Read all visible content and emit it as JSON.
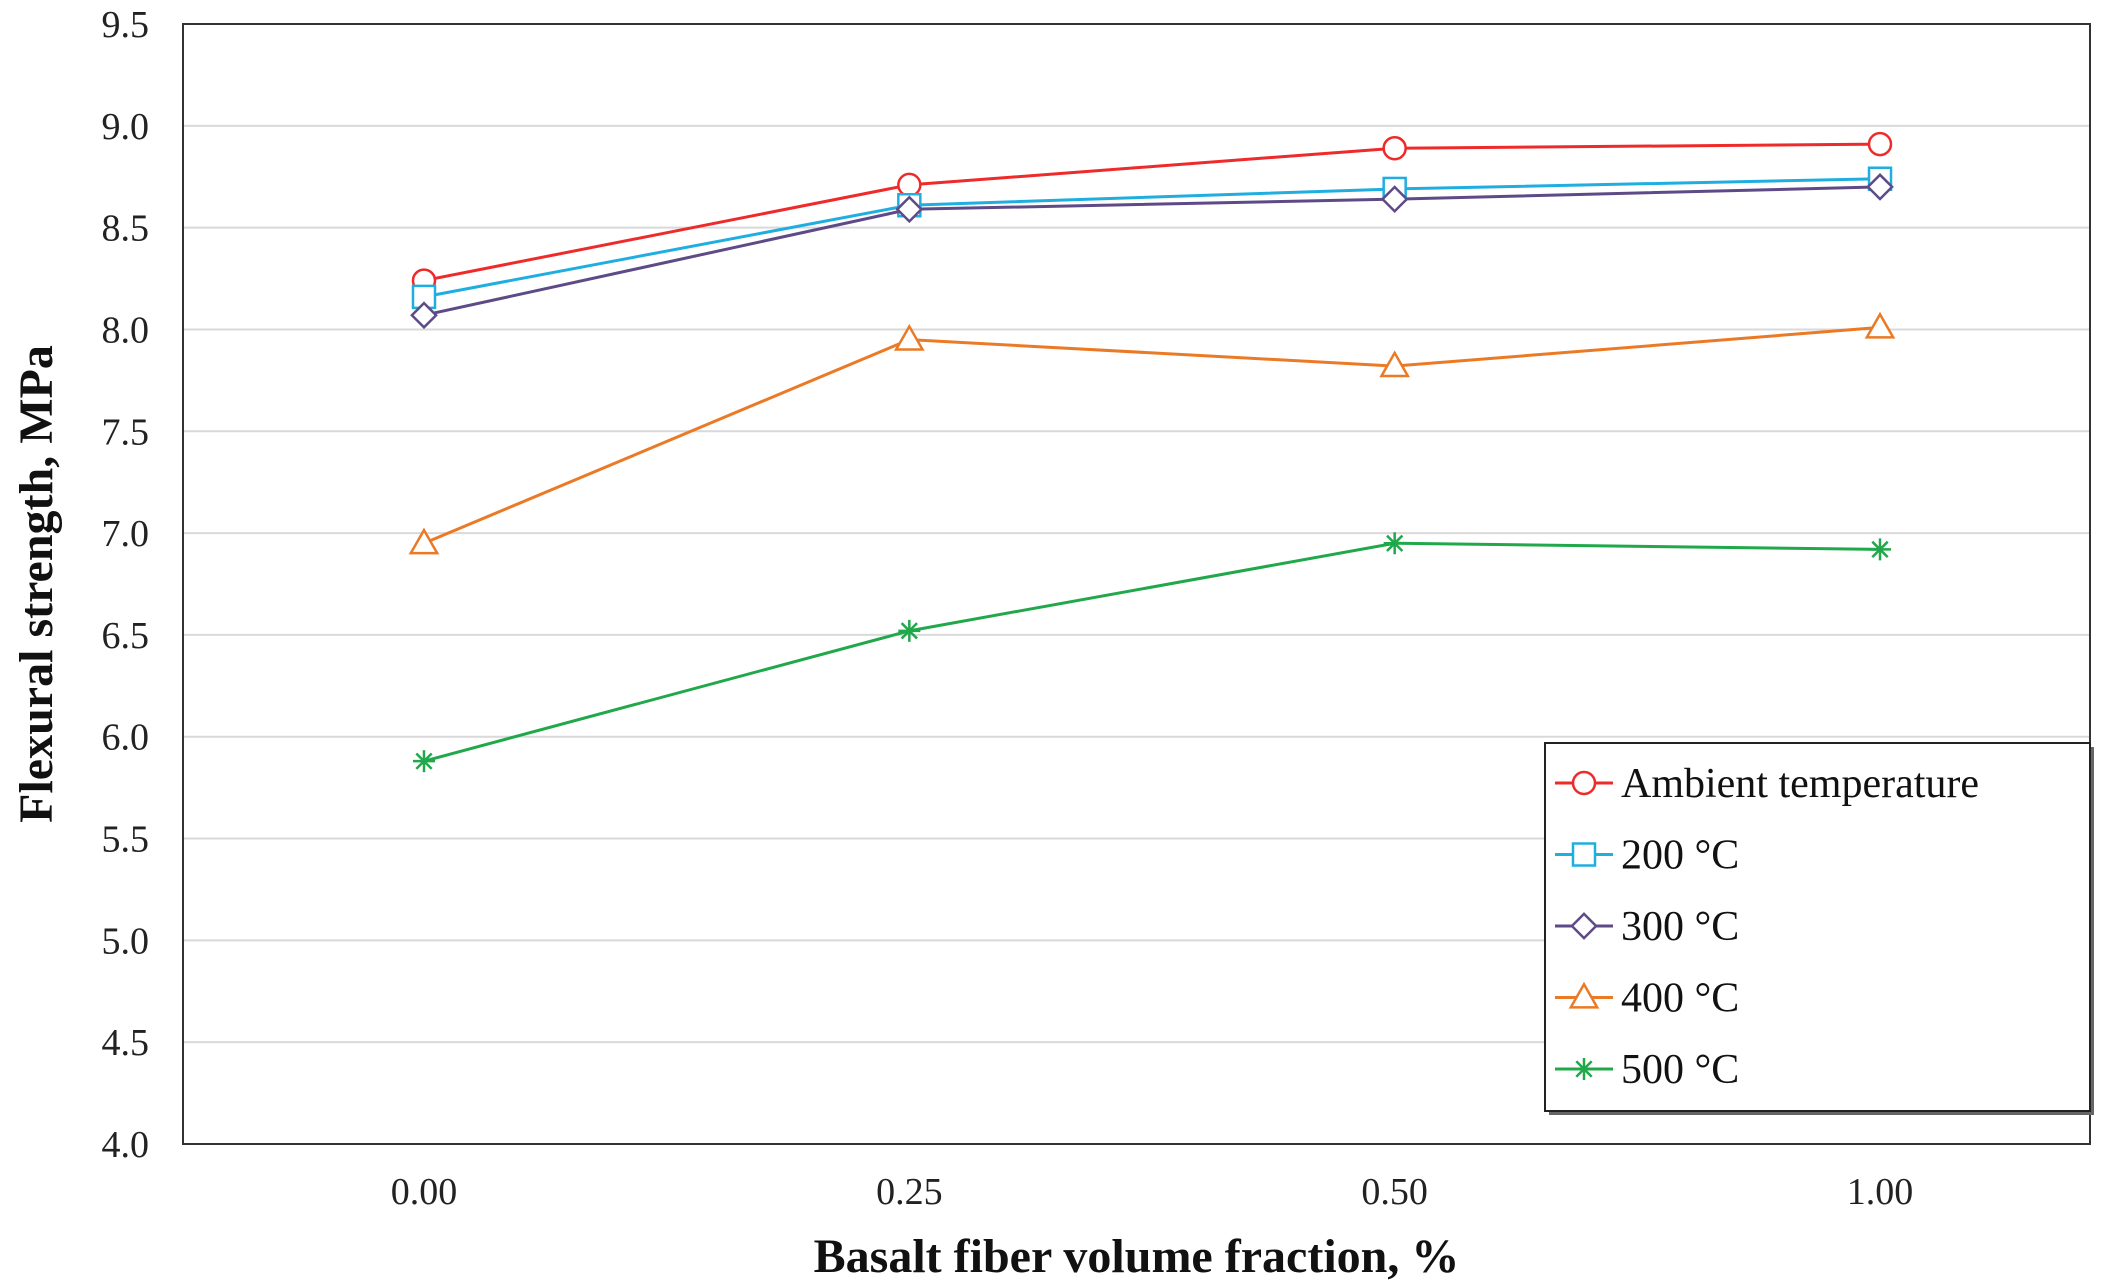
{
  "chart_data": {
    "type": "line",
    "title": "",
    "xlabel": "Basalt fiber volume fraction, %",
    "ylabel": "Flexural strength, MPa",
    "categories": [
      "0.00",
      "0.25",
      "0.50",
      "1.00"
    ],
    "ylim": [
      4.0,
      9.5
    ],
    "ytick_step": 0.5,
    "yticks": [
      "4.0",
      "4.5",
      "5.0",
      "5.5",
      "6.0",
      "6.5",
      "7.0",
      "7.5",
      "8.0",
      "8.5",
      "9.0",
      "9.5"
    ],
    "grid": "horizontal",
    "legend_position": "bottom-right",
    "series": [
      {
        "name": "Ambient temperature",
        "color": "#ee2a2a",
        "marker": "circle",
        "values": [
          8.24,
          8.71,
          8.89,
          8.91
        ]
      },
      {
        "name": "200 °C",
        "color": "#20aee0",
        "marker": "square",
        "values": [
          8.16,
          8.61,
          8.69,
          8.74
        ]
      },
      {
        "name": "300 °C",
        "color": "#5e4a86",
        "marker": "diamond",
        "values": [
          8.07,
          8.59,
          8.64,
          8.7
        ]
      },
      {
        "name": "400 °C",
        "color": "#ea7a26",
        "marker": "triangle",
        "values": [
          6.95,
          7.95,
          7.82,
          8.01
        ]
      },
      {
        "name": "500 °C",
        "color": "#20a84a",
        "marker": "asterisk",
        "values": [
          5.88,
          6.52,
          6.95,
          6.92
        ]
      }
    ]
  }
}
